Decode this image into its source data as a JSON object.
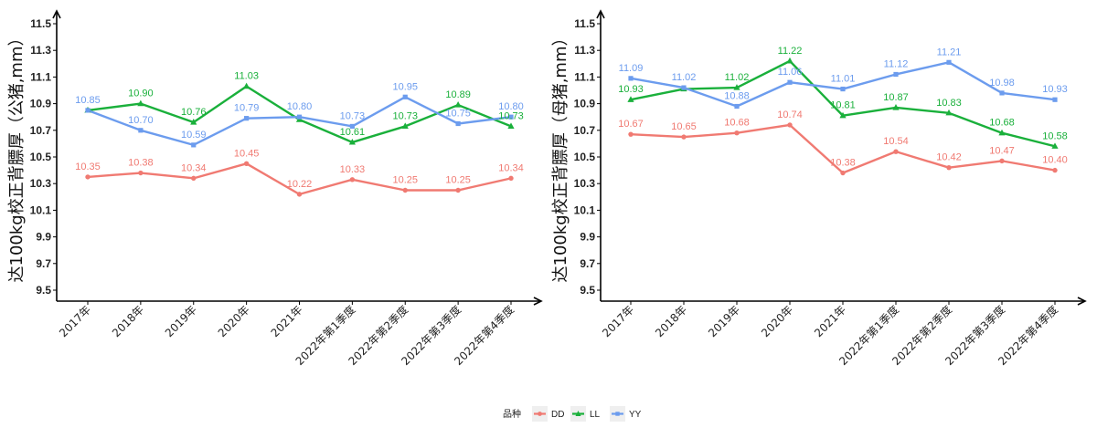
{
  "colors": {
    "DD": "#F07A72",
    "LL": "#1AB03B",
    "YY": "#6C9CEE",
    "axis": "#000000"
  },
  "legend": {
    "title": "品种",
    "position": "bottom",
    "items": [
      "DD",
      "LL",
      "YY"
    ]
  },
  "chart_data": [
    {
      "type": "line",
      "title": "",
      "xlabel": "",
      "ylabel": "达100kg校正背膘厚（公猪,mm）",
      "ylim": [
        9.4,
        11.6
      ],
      "yticks": [
        "9.5",
        "9.7",
        "9.9",
        "10.1",
        "10.3",
        "10.5",
        "10.7",
        "10.9",
        "11.1",
        "11.3",
        "11.5"
      ],
      "categories": [
        "2017年",
        "2018年",
        "2019年",
        "2020年",
        "2021年",
        "2022年第1季度",
        "2022年第2季度",
        "2022年第3季度",
        "2022年第4季度"
      ],
      "series": [
        {
          "name": "DD",
          "values": [
            10.35,
            10.38,
            10.34,
            10.45,
            10.22,
            10.33,
            10.25,
            10.25,
            10.34
          ],
          "labels": [
            "10.35",
            "10.38",
            "10.34",
            "10.45",
            "10.22",
            "10.33",
            "10.25",
            "10.25",
            "10.34"
          ]
        },
        {
          "name": "LL",
          "values": [
            10.85,
            10.9,
            10.76,
            11.03,
            10.78,
            10.61,
            10.73,
            10.89,
            10.73
          ],
          "labels": [
            "",
            "10.90",
            "10.76",
            "11.03",
            "",
            "10.61",
            "10.73",
            "10.89",
            "10.73"
          ]
        },
        {
          "name": "YY",
          "values": [
            10.85,
            10.7,
            10.59,
            10.79,
            10.8,
            10.73,
            10.95,
            10.75,
            10.8
          ],
          "labels": [
            "10.85",
            "10.70",
            "10.59",
            "10.79",
            "10.80",
            "10.73",
            "10.95",
            "10.75",
            "10.80"
          ]
        }
      ]
    },
    {
      "type": "line",
      "title": "",
      "xlabel": "",
      "ylabel": "达100kg校正背膘厚（母猪,mm）",
      "ylim": [
        9.4,
        11.6
      ],
      "yticks": [
        "9.5",
        "9.7",
        "9.9",
        "10.1",
        "10.3",
        "10.5",
        "10.7",
        "10.9",
        "11.1",
        "11.3",
        "11.5"
      ],
      "categories": [
        "2017年",
        "2018年",
        "2019年",
        "2020年",
        "2021年",
        "2022年第1季度",
        "2022年第2季度",
        "2022年第3季度",
        "2022年第4季度"
      ],
      "series": [
        {
          "name": "DD",
          "values": [
            10.67,
            10.65,
            10.68,
            10.74,
            10.38,
            10.54,
            10.42,
            10.47,
            10.4
          ],
          "labels": [
            "10.67",
            "10.65",
            "10.68",
            "10.74",
            "10.38",
            "10.54",
            "10.42",
            "10.47",
            "10.40"
          ]
        },
        {
          "name": "LL",
          "values": [
            10.93,
            11.01,
            11.02,
            11.22,
            10.81,
            10.87,
            10.83,
            10.68,
            10.58
          ],
          "labels": [
            "10.93",
            "",
            "11.02",
            "11.22",
            "10.81",
            "10.87",
            "10.83",
            "10.68",
            "10.58"
          ]
        },
        {
          "name": "YY",
          "values": [
            11.09,
            11.02,
            10.88,
            11.06,
            11.01,
            11.12,
            11.21,
            10.98,
            10.93
          ],
          "labels": [
            "11.09",
            "11.02",
            "10.88",
            "11.06",
            "11.01",
            "11.12",
            "11.21",
            "10.98",
            "10.93"
          ]
        }
      ]
    }
  ]
}
